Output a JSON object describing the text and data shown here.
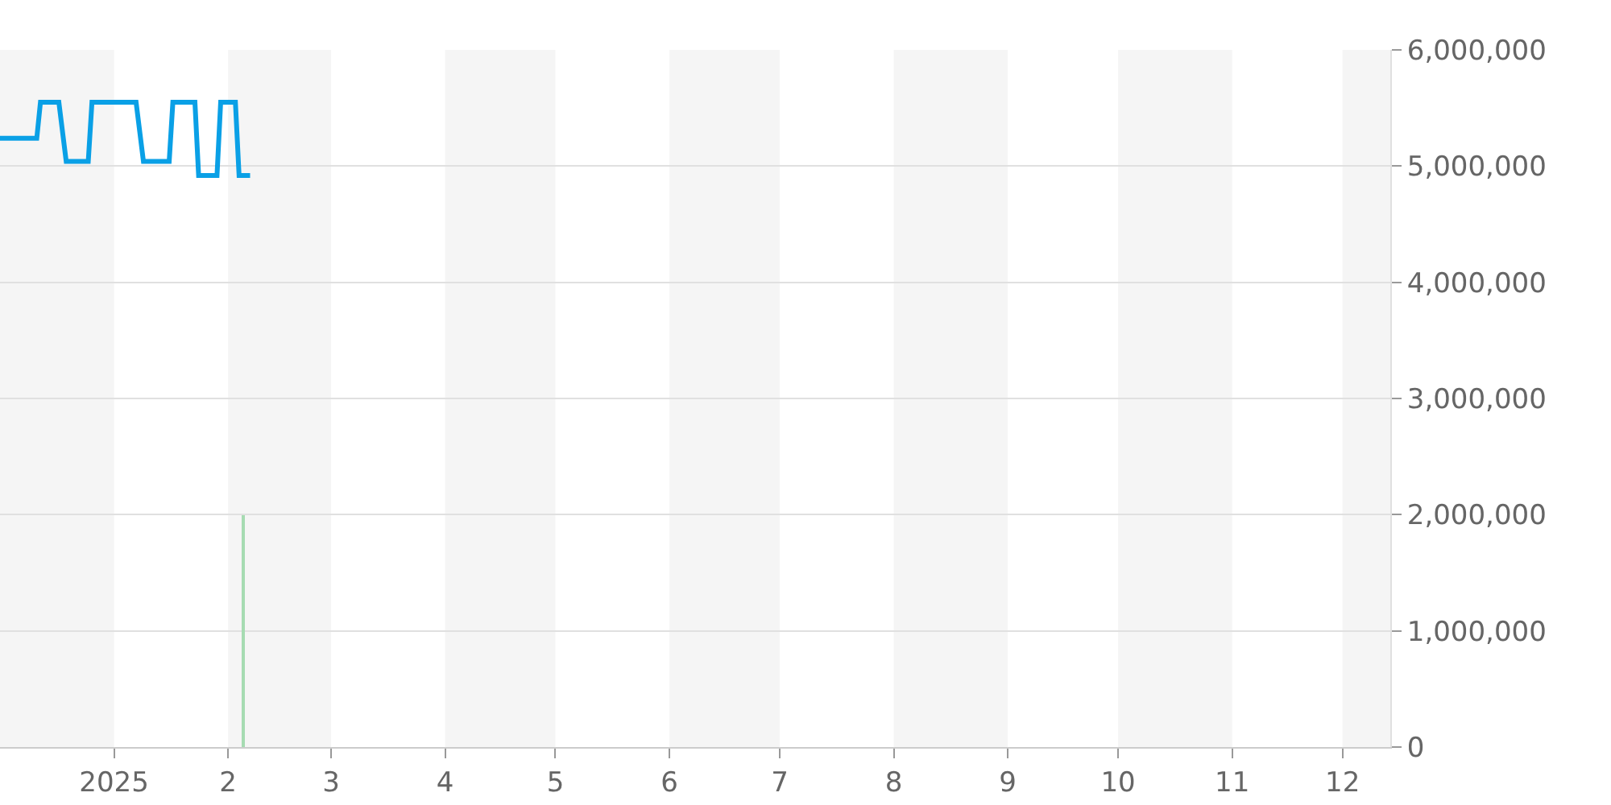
{
  "chart_data": {
    "type": "line",
    "x": [
      "2024-12-01",
      "2024-12-11",
      "2024-12-12",
      "2024-12-17",
      "2024-12-19",
      "2024-12-25",
      "2024-12-26",
      "2025-01-07",
      "2025-01-09",
      "2025-01-16",
      "2025-01-17",
      "2025-01-23",
      "2025-01-24",
      "2025-01-29",
      "2025-01-30",
      "2025-02-03",
      "2025-02-04",
      "2025-02-07"
    ],
    "series": [
      {
        "color": "#0aa0e6",
        "values": [
          5240000,
          5240000,
          5550000,
          5550000,
          5040000,
          5040000,
          5550000,
          5550000,
          5040000,
          5040000,
          5550000,
          5550000,
          4920000,
          4920000,
          5550000,
          5550000,
          4920000,
          4920000
        ]
      },
      {
        "type": "bar",
        "color": "#a6dbb2",
        "x": [
          "2025-02-05"
        ],
        "values": [
          2000000
        ]
      }
    ],
    "xlim": [
      "2024-12-01",
      "2025-12-14"
    ],
    "xticks": [
      {
        "value": "2025-01-01",
        "label": "2025"
      },
      {
        "value": "2025-02-01",
        "label": "2"
      },
      {
        "value": "2025-03-01",
        "label": "3"
      },
      {
        "value": "2025-04-01",
        "label": "4"
      },
      {
        "value": "2025-05-01",
        "label": "5"
      },
      {
        "value": "2025-06-01",
        "label": "6"
      },
      {
        "value": "2025-07-01",
        "label": "7"
      },
      {
        "value": "2025-08-01",
        "label": "8"
      },
      {
        "value": "2025-09-01",
        "label": "9"
      },
      {
        "value": "2025-10-01",
        "label": "10"
      },
      {
        "value": "2025-11-01",
        "label": "11"
      },
      {
        "value": "2025-12-01",
        "label": "12"
      }
    ],
    "ylim": [
      0,
      6000000
    ],
    "yticks": [
      {
        "value": 0,
        "label": "0"
      },
      {
        "value": 1000000,
        "label": "1,000,000"
      },
      {
        "value": 2000000,
        "label": "2,000,000"
      },
      {
        "value": 3000000,
        "label": "3,000,000"
      },
      {
        "value": 4000000,
        "label": "4,000,000"
      },
      {
        "value": 5000000,
        "label": "5,000,000"
      },
      {
        "value": 6000000,
        "label": "6,000,000"
      }
    ],
    "bands": [
      {
        "axis": "x",
        "from": "2024-12-01",
        "to": "2025-01-01",
        "color": "#f5f5f5"
      },
      {
        "axis": "x",
        "from": "2025-02-01",
        "to": "2025-03-01",
        "color": "#f5f5f5"
      },
      {
        "axis": "x",
        "from": "2025-04-01",
        "to": "2025-05-01",
        "color": "#f5f5f5"
      },
      {
        "axis": "x",
        "from": "2025-06-01",
        "to": "2025-07-01",
        "color": "#f5f5f5"
      },
      {
        "axis": "x",
        "from": "2025-08-01",
        "to": "2025-09-01",
        "color": "#f5f5f5"
      },
      {
        "axis": "x",
        "from": "2025-10-01",
        "to": "2025-11-01",
        "color": "#f5f5f5"
      },
      {
        "axis": "x",
        "from": "2025-12-01",
        "to": "2025-12-14",
        "color": "#f5f5f5"
      }
    ],
    "grid": "y",
    "marker": "none",
    "line_style": "solid"
  }
}
